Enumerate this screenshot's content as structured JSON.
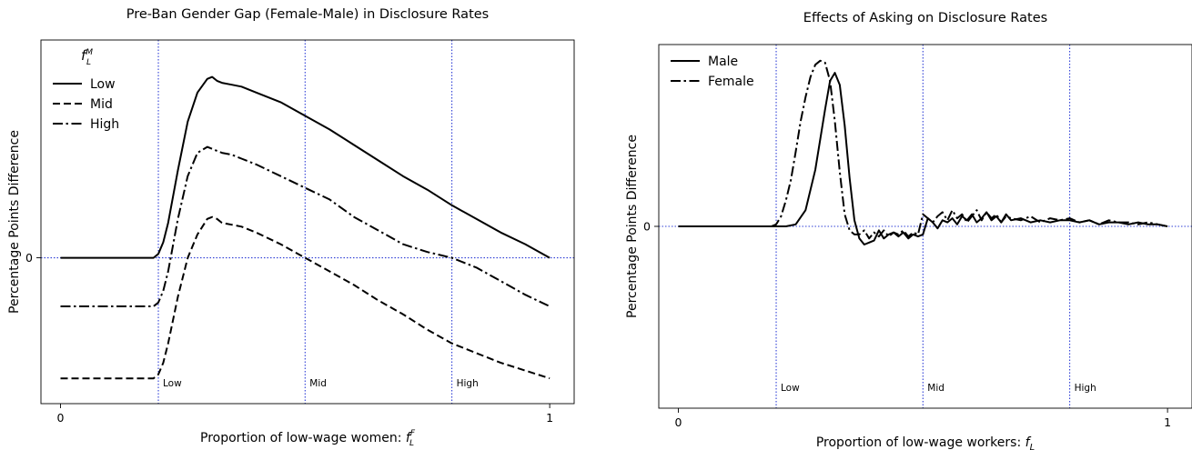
{
  "chart_data": [
    {
      "type": "line",
      "title": "Pre-Ban Gender Gap (Female-Male) in Disclosure Rates",
      "xlabel": "Proportion of low-wage women: ",
      "xlabel_math": "f",
      "xlabel_sub": "L",
      "xlabel_sup": "F",
      "ylabel": "Percentage Points Difference",
      "xlim": [
        -0.04,
        1.05
      ],
      "ylim": [
        -0.75,
        1.12
      ],
      "xticks": [
        {
          "value": 0,
          "label": "0"
        },
        {
          "value": 1,
          "label": "1"
        }
      ],
      "yticks": [
        {
          "value": 0,
          "label": "0"
        }
      ],
      "hline": 0,
      "vlines": [
        {
          "value": 0.2,
          "label": "Low"
        },
        {
          "value": 0.5,
          "label": "Mid"
        },
        {
          "value": 0.8,
          "label": "High"
        }
      ],
      "legend": {
        "position": "top-left",
        "title": "f",
        "title_sub": "L",
        "title_sup": "M",
        "entries": [
          "Low",
          "Mid",
          "High"
        ]
      },
      "x": [
        0.0,
        0.05,
        0.1,
        0.15,
        0.19,
        0.2,
        0.21,
        0.22,
        0.24,
        0.26,
        0.28,
        0.3,
        0.31,
        0.32,
        0.33,
        0.35,
        0.37,
        0.4,
        0.45,
        0.5,
        0.55,
        0.6,
        0.65,
        0.7,
        0.75,
        0.8,
        0.85,
        0.9,
        0.95,
        1.0
      ],
      "series": [
        {
          "name": "Low",
          "style": "solid",
          "values": [
            0,
            0,
            0,
            0,
            0,
            0.02,
            0.08,
            0.18,
            0.45,
            0.7,
            0.85,
            0.92,
            0.93,
            0.91,
            0.9,
            0.89,
            0.88,
            0.85,
            0.8,
            0.73,
            0.66,
            0.58,
            0.5,
            0.42,
            0.35,
            0.27,
            0.2,
            0.13,
            0.07,
            0.0
          ]
        },
        {
          "name": "Mid",
          "style": "dashed",
          "values": [
            -0.62,
            -0.62,
            -0.62,
            -0.62,
            -0.62,
            -0.6,
            -0.54,
            -0.44,
            -0.2,
            0.0,
            0.12,
            0.2,
            0.21,
            0.2,
            0.18,
            0.17,
            0.16,
            0.13,
            0.07,
            0.0,
            -0.07,
            -0.14,
            -0.22,
            -0.29,
            -0.37,
            -0.44,
            -0.49,
            -0.54,
            -0.58,
            -0.62
          ]
        },
        {
          "name": "High",
          "style": "dashdot",
          "values": [
            -0.25,
            -0.25,
            -0.25,
            -0.25,
            -0.25,
            -0.23,
            -0.17,
            -0.07,
            0.2,
            0.42,
            0.54,
            0.57,
            0.56,
            0.55,
            0.54,
            0.53,
            0.51,
            0.48,
            0.42,
            0.36,
            0.3,
            0.21,
            0.14,
            0.07,
            0.03,
            0.0,
            -0.05,
            -0.12,
            -0.19,
            -0.25
          ]
        }
      ]
    },
    {
      "type": "line",
      "title": "Effects of Asking on Disclosure Rates",
      "xlabel": "Proportion of low-wage workers: ",
      "xlabel_math": "f",
      "xlabel_sub": "L",
      "ylabel": "Percentage Points Difference",
      "xlim": [
        -0.04,
        1.05
      ],
      "ylim": [
        -0.9,
        0.9
      ],
      "xticks": [
        {
          "value": 0,
          "label": "0"
        },
        {
          "value": 1,
          "label": "1"
        }
      ],
      "yticks": [
        {
          "value": 0,
          "label": "0"
        }
      ],
      "hline": 0,
      "vlines": [
        {
          "value": 0.2,
          "label": "Low"
        },
        {
          "value": 0.5,
          "label": "Mid"
        },
        {
          "value": 0.8,
          "label": "High"
        }
      ],
      "legend": {
        "position": "top-left",
        "entries": [
          "Male",
          "Female"
        ]
      },
      "series": [
        {
          "name": "Male",
          "style": "solid",
          "x": [
            0.0,
            0.1,
            0.2,
            0.22,
            0.24,
            0.26,
            0.28,
            0.3,
            0.31,
            0.32,
            0.33,
            0.34,
            0.35,
            0.36,
            0.37,
            0.38,
            0.39,
            0.4,
            0.41,
            0.42,
            0.43,
            0.44,
            0.45,
            0.46,
            0.47,
            0.48,
            0.49,
            0.5,
            0.51,
            0.52,
            0.53,
            0.54,
            0.55,
            0.56,
            0.57,
            0.58,
            0.59,
            0.6,
            0.61,
            0.62,
            0.63,
            0.64,
            0.65,
            0.66,
            0.67,
            0.68,
            0.7,
            0.72,
            0.74,
            0.76,
            0.78,
            0.8,
            0.82,
            0.84,
            0.86,
            0.88,
            0.9,
            0.92,
            0.94,
            0.96,
            0.98,
            1.0
          ],
          "values": [
            0,
            0,
            0,
            0.0,
            0.01,
            0.08,
            0.28,
            0.58,
            0.72,
            0.76,
            0.7,
            0.5,
            0.24,
            0.03,
            -0.06,
            -0.09,
            -0.08,
            -0.07,
            -0.02,
            -0.06,
            -0.04,
            -0.03,
            -0.05,
            -0.03,
            -0.06,
            -0.04,
            -0.05,
            -0.04,
            0.04,
            0.02,
            -0.01,
            0.03,
            0.02,
            0.04,
            0.01,
            0.05,
            0.03,
            0.06,
            0.02,
            0.04,
            0.07,
            0.03,
            0.05,
            0.02,
            0.06,
            0.03,
            0.04,
            0.02,
            0.03,
            0.02,
            0.03,
            0.03,
            0.02,
            0.03,
            0.01,
            0.02,
            0.02,
            0.01,
            0.02,
            0.01,
            0.01,
            0.0
          ]
        },
        {
          "name": "Female",
          "style": "dashdot",
          "x": [
            0.0,
            0.1,
            0.19,
            0.2,
            0.21,
            0.22,
            0.23,
            0.24,
            0.25,
            0.26,
            0.27,
            0.28,
            0.29,
            0.3,
            0.31,
            0.32,
            0.33,
            0.34,
            0.35,
            0.36,
            0.37,
            0.38,
            0.39,
            0.4,
            0.41,
            0.42,
            0.43,
            0.44,
            0.45,
            0.46,
            0.47,
            0.48,
            0.49,
            0.5,
            0.51,
            0.52,
            0.53,
            0.54,
            0.55,
            0.56,
            0.57,
            0.58,
            0.59,
            0.6,
            0.61,
            0.62,
            0.63,
            0.64,
            0.65,
            0.66,
            0.67,
            0.68,
            0.7,
            0.72,
            0.74,
            0.76,
            0.78,
            0.8,
            0.82,
            0.84,
            0.86,
            0.88,
            0.9,
            0.92,
            0.94,
            0.96,
            0.98,
            1.0
          ],
          "values": [
            0,
            0,
            0,
            0.01,
            0.05,
            0.13,
            0.23,
            0.37,
            0.52,
            0.64,
            0.74,
            0.8,
            0.82,
            0.81,
            0.72,
            0.52,
            0.27,
            0.06,
            -0.02,
            -0.04,
            -0.04,
            -0.02,
            -0.06,
            -0.03,
            -0.05,
            -0.02,
            -0.05,
            -0.03,
            -0.04,
            -0.02,
            -0.05,
            -0.03,
            -0.04,
            0.06,
            0.04,
            0.02,
            0.05,
            0.07,
            0.03,
            0.08,
            0.04,
            0.06,
            0.02,
            0.05,
            0.08,
            0.03,
            0.07,
            0.04,
            0.06,
            0.02,
            0.05,
            0.04,
            0.03,
            0.05,
            0.02,
            0.04,
            0.03,
            0.04,
            0.02,
            0.03,
            0.01,
            0.03,
            0.02,
            0.02,
            0.01,
            0.02,
            0.01,
            0.0
          ]
        }
      ]
    }
  ]
}
